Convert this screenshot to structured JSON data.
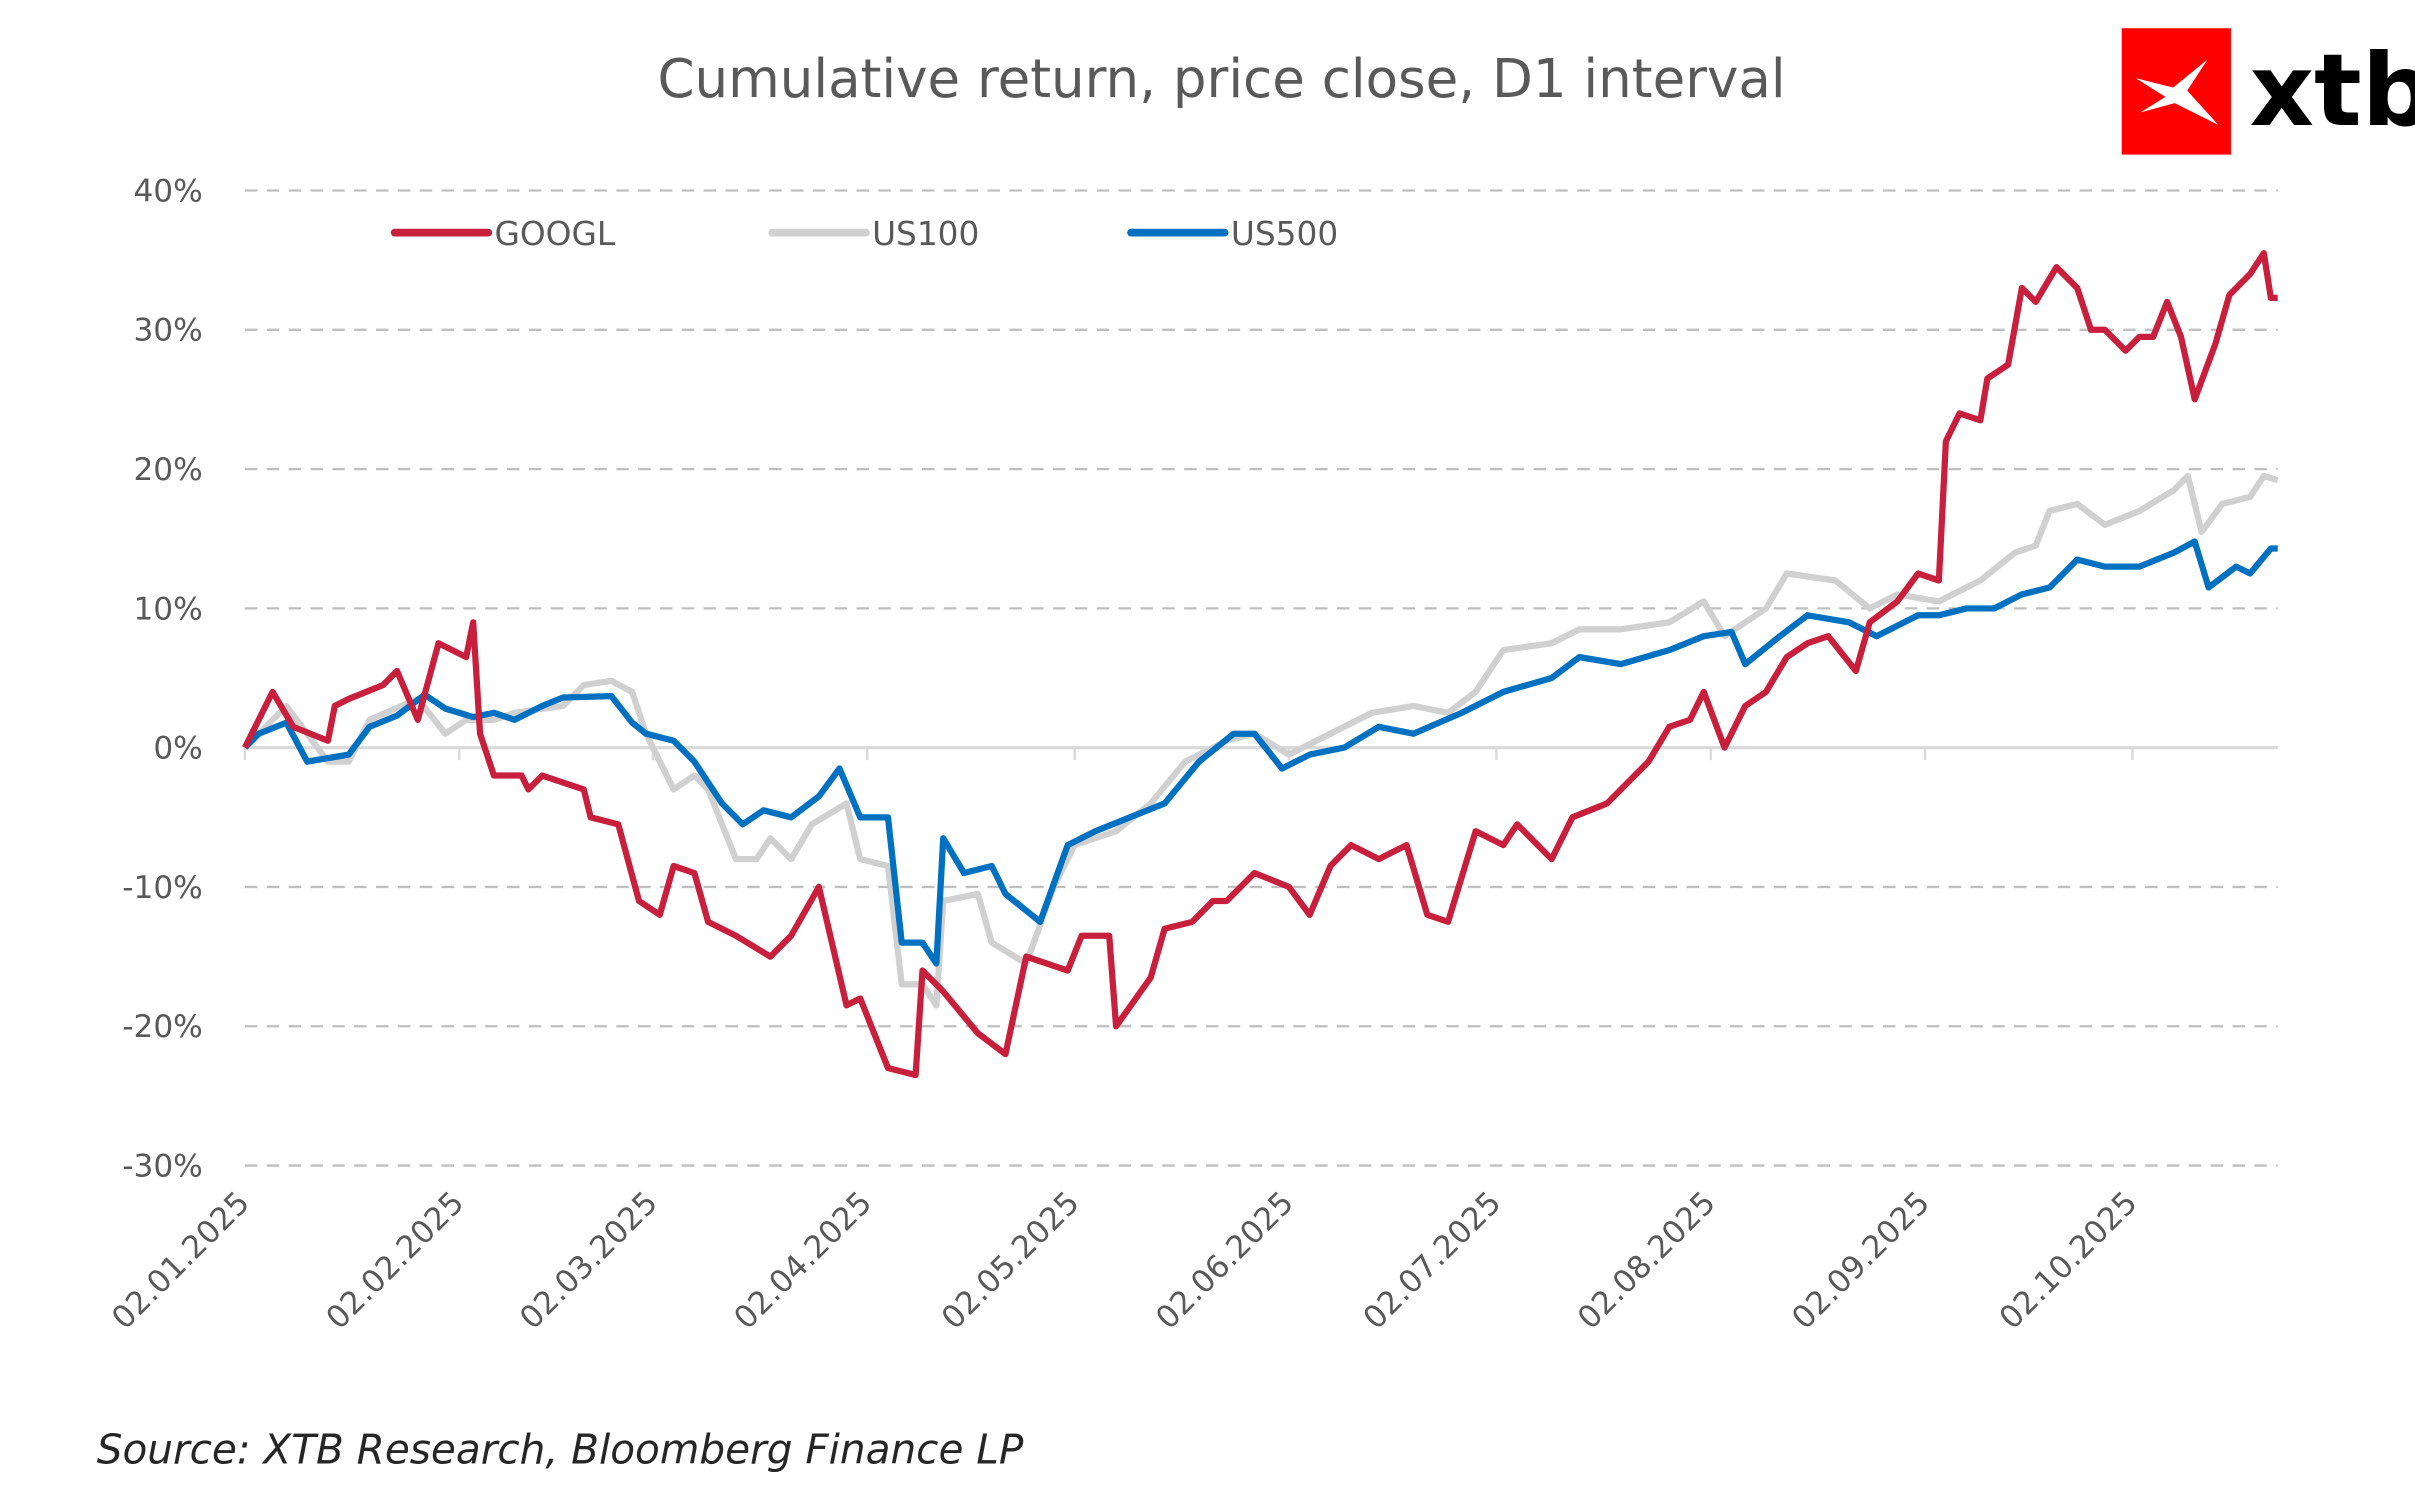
{
  "chart_data": {
    "type": "line",
    "title": "Cumulative return, price close, D1 interval",
    "xlabel": "",
    "ylabel": "",
    "ylim": [
      -30,
      40
    ],
    "yticks": [
      "40%",
      "30%",
      "20%",
      "10%",
      "0%",
      "-10%",
      "-20%",
      "-30%"
    ],
    "ytick_values": [
      40,
      30,
      20,
      10,
      0,
      -10,
      -20,
      -30
    ],
    "xlim": [
      "2025-01-02",
      "2025-10-23"
    ],
    "xticks": [
      "02.01.2025",
      "02.02.2025",
      "02.03.2025",
      "02.04.2025",
      "02.05.2025",
      "02.06.2025",
      "02.07.2025",
      "02.08.2025",
      "02.09.2025",
      "02.10.2025"
    ],
    "xtick_dates": [
      "2025-01-02",
      "2025-02-02",
      "2025-03-02",
      "2025-04-02",
      "2025-05-02",
      "2025-06-02",
      "2025-07-02",
      "2025-08-02",
      "2025-09-02",
      "2025-10-02"
    ],
    "grid": "horizontal dashed",
    "legend_position": "top-left",
    "series": [
      {
        "name": "GOOGL",
        "color": "#C8203C",
        "points": [
          [
            "2025-01-02",
            0
          ],
          [
            "2025-01-06",
            4
          ],
          [
            "2025-01-09",
            1.5
          ],
          [
            "2025-01-14",
            0.5
          ],
          [
            "2025-01-15",
            3
          ],
          [
            "2025-01-17",
            3.5
          ],
          [
            "2025-01-22",
            4.5
          ],
          [
            "2025-01-24",
            5.5
          ],
          [
            "2025-01-27",
            2
          ],
          [
            "2025-01-30",
            7.5
          ],
          [
            "2025-02-03",
            6.5
          ],
          [
            "2025-02-04",
            9
          ],
          [
            "2025-02-05",
            1
          ],
          [
            "2025-02-07",
            -2
          ],
          [
            "2025-02-11",
            -2
          ],
          [
            "2025-02-12",
            -3
          ],
          [
            "2025-02-14",
            -2
          ],
          [
            "2025-02-17",
            -2.5
          ],
          [
            "2025-02-20",
            -3
          ],
          [
            "2025-02-21",
            -5
          ],
          [
            "2025-02-25",
            -5.5
          ],
          [
            "2025-02-28",
            -11
          ],
          [
            "2025-03-03",
            -12
          ],
          [
            "2025-03-05",
            -8.5
          ],
          [
            "2025-03-08",
            -9
          ],
          [
            "2025-03-10",
            -12.5
          ],
          [
            "2025-03-14",
            -13.5
          ],
          [
            "2025-03-19",
            -15
          ],
          [
            "2025-03-22",
            -13.5
          ],
          [
            "2025-03-26",
            -10
          ],
          [
            "2025-03-30",
            -18.5
          ],
          [
            "2025-04-01",
            -18
          ],
          [
            "2025-04-05",
            -23
          ],
          [
            "2025-04-09",
            -23.5
          ],
          [
            "2025-04-10",
            -16
          ],
          [
            "2025-04-13",
            -17.5
          ],
          [
            "2025-04-18",
            -20.5
          ],
          [
            "2025-04-22",
            -22
          ],
          [
            "2025-04-25",
            -15
          ],
          [
            "2025-05-01",
            -16
          ],
          [
            "2025-05-03",
            -13.5
          ],
          [
            "2025-05-07",
            -13.5
          ],
          [
            "2025-05-08",
            -20
          ],
          [
            "2025-05-13",
            -16.5
          ],
          [
            "2025-05-15",
            -13
          ],
          [
            "2025-05-19",
            -12.5
          ],
          [
            "2025-05-22",
            -11
          ],
          [
            "2025-05-24",
            -11
          ],
          [
            "2025-05-28",
            -9
          ],
          [
            "2025-06-02",
            -10
          ],
          [
            "2025-06-05",
            -12
          ],
          [
            "2025-06-08",
            -8.5
          ],
          [
            "2025-06-11",
            -7
          ],
          [
            "2025-06-15",
            -8
          ],
          [
            "2025-06-19",
            -7
          ],
          [
            "2025-06-22",
            -12
          ],
          [
            "2025-06-25",
            -12.5
          ],
          [
            "2025-06-29",
            -6
          ],
          [
            "2025-07-03",
            -7
          ],
          [
            "2025-07-05",
            -5.5
          ],
          [
            "2025-07-10",
            -8
          ],
          [
            "2025-07-13",
            -5
          ],
          [
            "2025-07-18",
            -4
          ],
          [
            "2025-07-24",
            -1
          ],
          [
            "2025-07-27",
            1.5
          ],
          [
            "2025-07-30",
            2
          ],
          [
            "2025-08-01",
            4
          ],
          [
            "2025-08-04",
            0
          ],
          [
            "2025-08-07",
            3
          ],
          [
            "2025-08-10",
            4
          ],
          [
            "2025-08-13",
            6.5
          ],
          [
            "2025-08-16",
            7.5
          ],
          [
            "2025-08-19",
            8
          ],
          [
            "2025-08-23",
            5.5
          ],
          [
            "2025-08-25",
            9
          ],
          [
            "2025-08-29",
            10.5
          ],
          [
            "2025-09-01",
            12.5
          ],
          [
            "2025-09-04",
            12
          ],
          [
            "2025-09-05",
            22
          ],
          [
            "2025-09-07",
            24
          ],
          [
            "2025-09-10",
            23.5
          ],
          [
            "2025-09-11",
            26.5
          ],
          [
            "2025-09-14",
            27.5
          ],
          [
            "2025-09-16",
            33
          ],
          [
            "2025-09-18",
            32
          ],
          [
            "2025-09-21",
            34.5
          ],
          [
            "2025-09-24",
            33
          ],
          [
            "2025-09-26",
            30
          ],
          [
            "2025-09-28",
            30
          ],
          [
            "2025-10-01",
            28.5
          ],
          [
            "2025-10-03",
            29.5
          ],
          [
            "2025-10-05",
            29.5
          ],
          [
            "2025-10-07",
            32
          ],
          [
            "2025-10-09",
            29.5
          ],
          [
            "2025-10-11",
            25
          ],
          [
            "2025-10-14",
            29
          ],
          [
            "2025-10-16",
            32.5
          ],
          [
            "2025-10-19",
            34
          ],
          [
            "2025-10-21",
            35.5
          ],
          [
            "2025-10-22",
            32.3
          ],
          [
            "2025-10-23",
            32.3
          ]
        ]
      },
      {
        "name": "US100",
        "color": "#D0D0D0",
        "points": [
          [
            "2025-01-02",
            0
          ],
          [
            "2025-01-08",
            3
          ],
          [
            "2025-01-14",
            -1
          ],
          [
            "2025-01-17",
            -1
          ],
          [
            "2025-01-20",
            2
          ],
          [
            "2025-01-27",
            3.5
          ],
          [
            "2025-01-31",
            1
          ],
          [
            "2025-02-03",
            2
          ],
          [
            "2025-02-07",
            2
          ],
          [
            "2025-02-10",
            2.5
          ],
          [
            "2025-02-17",
            3
          ],
          [
            "2025-02-20",
            4.5
          ],
          [
            "2025-02-24",
            4.8
          ],
          [
            "2025-02-27",
            4
          ],
          [
            "2025-03-01",
            1
          ],
          [
            "2025-03-05",
            -3
          ],
          [
            "2025-03-08",
            -2
          ],
          [
            "2025-03-10",
            -3
          ],
          [
            "2025-03-14",
            -8
          ],
          [
            "2025-03-17",
            -8
          ],
          [
            "2025-03-19",
            -6.5
          ],
          [
            "2025-03-22",
            -8
          ],
          [
            "2025-03-25",
            -5.5
          ],
          [
            "2025-03-30",
            -4
          ],
          [
            "2025-04-01",
            -8
          ],
          [
            "2025-04-05",
            -8.5
          ],
          [
            "2025-04-07",
            -17
          ],
          [
            "2025-04-10",
            -17
          ],
          [
            "2025-04-12",
            -18.5
          ],
          [
            "2025-04-13",
            -11
          ],
          [
            "2025-04-18",
            -10.5
          ],
          [
            "2025-04-20",
            -14
          ],
          [
            "2025-04-25",
            -15.5
          ],
          [
            "2025-04-29",
            -10
          ],
          [
            "2025-05-02",
            -7
          ],
          [
            "2025-05-08",
            -6
          ],
          [
            "2025-05-13",
            -4
          ],
          [
            "2025-05-18",
            -1
          ],
          [
            "2025-05-24",
            0.5
          ],
          [
            "2025-05-28",
            1
          ],
          [
            "2025-06-02",
            -0.5
          ],
          [
            "2025-06-08",
            1
          ],
          [
            "2025-06-14",
            2.5
          ],
          [
            "2025-06-20",
            3
          ],
          [
            "2025-06-25",
            2.5
          ],
          [
            "2025-06-29",
            4
          ],
          [
            "2025-07-03",
            7
          ],
          [
            "2025-07-10",
            7.5
          ],
          [
            "2025-07-14",
            8.5
          ],
          [
            "2025-07-20",
            8.5
          ],
          [
            "2025-07-27",
            9
          ],
          [
            "2025-08-01",
            10.5
          ],
          [
            "2025-08-04",
            8
          ],
          [
            "2025-08-10",
            10
          ],
          [
            "2025-08-13",
            12.5
          ],
          [
            "2025-08-20",
            12
          ],
          [
            "2025-08-25",
            10
          ],
          [
            "2025-08-29",
            11
          ],
          [
            "2025-09-04",
            10.5
          ],
          [
            "2025-09-10",
            12
          ],
          [
            "2025-09-15",
            14
          ],
          [
            "2025-09-18",
            14.5
          ],
          [
            "2025-09-20",
            17
          ],
          [
            "2025-09-24",
            17.5
          ],
          [
            "2025-09-28",
            16
          ],
          [
            "2025-10-03",
            17
          ],
          [
            "2025-10-08",
            18.5
          ],
          [
            "2025-10-10",
            19.5
          ],
          [
            "2025-10-12",
            15.5
          ],
          [
            "2025-10-15",
            17.5
          ],
          [
            "2025-10-19",
            18
          ],
          [
            "2025-10-21",
            19.5
          ],
          [
            "2025-10-23",
            19.2
          ]
        ]
      },
      {
        "name": "US500",
        "color": "#0070C0",
        "points": [
          [
            "2025-01-02",
            0
          ],
          [
            "2025-01-04",
            1
          ],
          [
            "2025-01-08",
            1.8
          ],
          [
            "2025-01-11",
            -1
          ],
          [
            "2025-01-17",
            -0.5
          ],
          [
            "2025-01-20",
            1.5
          ],
          [
            "2025-01-24",
            2.3
          ],
          [
            "2025-01-28",
            3.8
          ],
          [
            "2025-01-31",
            2.8
          ],
          [
            "2025-02-04",
            2.2
          ],
          [
            "2025-02-07",
            2.5
          ],
          [
            "2025-02-10",
            2
          ],
          [
            "2025-02-14",
            3
          ],
          [
            "2025-02-17",
            3.6
          ],
          [
            "2025-02-24",
            3.7
          ],
          [
            "2025-02-27",
            1.8
          ],
          [
            "2025-03-01",
            1
          ],
          [
            "2025-03-05",
            0.5
          ],
          [
            "2025-03-08",
            -1
          ],
          [
            "2025-03-12",
            -4
          ],
          [
            "2025-03-15",
            -5.5
          ],
          [
            "2025-03-18",
            -4.5
          ],
          [
            "2025-03-22",
            -5
          ],
          [
            "2025-03-26",
            -3.5
          ],
          [
            "2025-03-29",
            -1.5
          ],
          [
            "2025-04-01",
            -5
          ],
          [
            "2025-04-05",
            -5
          ],
          [
            "2025-04-07",
            -14
          ],
          [
            "2025-04-10",
            -14
          ],
          [
            "2025-04-12",
            -15.5
          ],
          [
            "2025-04-13",
            -6.5
          ],
          [
            "2025-04-16",
            -9
          ],
          [
            "2025-04-20",
            -8.5
          ],
          [
            "2025-04-22",
            -10.5
          ],
          [
            "2025-04-27",
            -12.5
          ],
          [
            "2025-05-01",
            -7
          ],
          [
            "2025-05-05",
            -6
          ],
          [
            "2025-05-10",
            -5
          ],
          [
            "2025-05-15",
            -4
          ],
          [
            "2025-05-20",
            -1
          ],
          [
            "2025-05-25",
            1
          ],
          [
            "2025-05-28",
            1
          ],
          [
            "2025-06-01",
            -1.5
          ],
          [
            "2025-06-05",
            -0.5
          ],
          [
            "2025-06-10",
            0
          ],
          [
            "2025-06-15",
            1.5
          ],
          [
            "2025-06-20",
            1
          ],
          [
            "2025-06-27",
            2.5
          ],
          [
            "2025-07-03",
            4
          ],
          [
            "2025-07-10",
            5
          ],
          [
            "2025-07-14",
            6.5
          ],
          [
            "2025-07-20",
            6
          ],
          [
            "2025-07-27",
            7
          ],
          [
            "2025-08-01",
            8
          ],
          [
            "2025-08-05",
            8.3
          ],
          [
            "2025-08-07",
            6
          ],
          [
            "2025-08-12",
            8
          ],
          [
            "2025-08-16",
            9.5
          ],
          [
            "2025-08-22",
            9
          ],
          [
            "2025-08-26",
            8
          ],
          [
            "2025-09-01",
            9.5
          ],
          [
            "2025-09-04",
            9.5
          ],
          [
            "2025-09-08",
            10
          ],
          [
            "2025-09-12",
            10
          ],
          [
            "2025-09-16",
            11
          ],
          [
            "2025-09-20",
            11.5
          ],
          [
            "2025-09-24",
            13.5
          ],
          [
            "2025-09-28",
            13
          ],
          [
            "2025-10-03",
            13
          ],
          [
            "2025-10-08",
            14
          ],
          [
            "2025-10-11",
            14.8
          ],
          [
            "2025-10-13",
            11.5
          ],
          [
            "2025-10-17",
            13
          ],
          [
            "2025-10-19",
            12.5
          ],
          [
            "2025-10-22",
            14.3
          ],
          [
            "2025-10-23",
            14.3
          ]
        ]
      }
    ]
  },
  "source": "Source: XTB Research, Bloomberg Finance LP",
  "logo": {
    "text": "xtb",
    "color": "#FF0000"
  }
}
